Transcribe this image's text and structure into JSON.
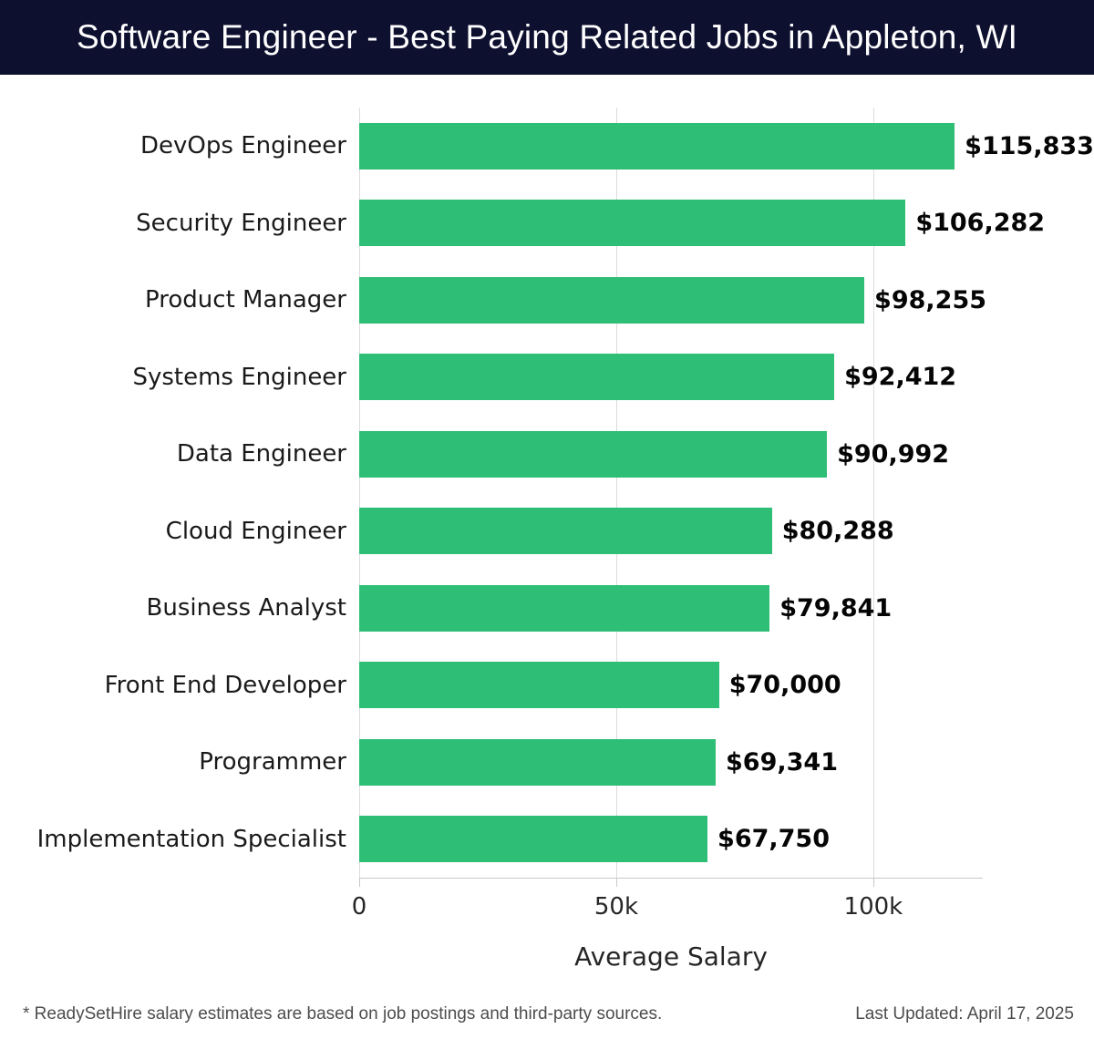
{
  "header": {
    "title": "Software Engineer - Best Paying Related Jobs in Appleton, WI"
  },
  "chart_data": {
    "type": "bar",
    "orientation": "horizontal",
    "title": "Software Engineer - Best Paying Related Jobs in Appleton, WI",
    "categories": [
      "DevOps Engineer",
      "Security Engineer",
      "Product Manager",
      "Systems Engineer",
      "Data Engineer",
      "Cloud Engineer",
      "Business Analyst",
      "Front End Developer",
      "Programmer",
      "Implementation Specialist"
    ],
    "values": [
      115833,
      106282,
      98255,
      92412,
      90992,
      80288,
      79841,
      70000,
      69341,
      67750
    ],
    "value_labels": [
      "$115,833",
      "$106,282",
      "$98,255",
      "$92,412",
      "$90,992",
      "$80,288",
      "$79,841",
      "$70,000",
      "$69,341",
      "$67,750"
    ],
    "xlabel": "Average Salary",
    "xticks": [
      {
        "value": 0,
        "label": "0"
      },
      {
        "value": 50000,
        "label": "50k"
      },
      {
        "value": 100000,
        "label": "100k"
      }
    ],
    "xlim": [
      0,
      121300
    ],
    "grid": "vertical-only",
    "legend": "none",
    "bar_color": "#2fbe76"
  },
  "footer": {
    "note": "* ReadySetHire salary estimates are based on job postings and third-party sources.",
    "last_updated": "Last Updated: April 17, 2025"
  },
  "colors": {
    "header_bg": "#0e1030",
    "bar": "#2fbe76",
    "grid": "#dcdcdc",
    "axis": "#c8c8c8",
    "title_text": "#ffffff",
    "label_text": "#1a1a1a",
    "value_text": "#050505",
    "footer_text": "#4d4d4d"
  }
}
